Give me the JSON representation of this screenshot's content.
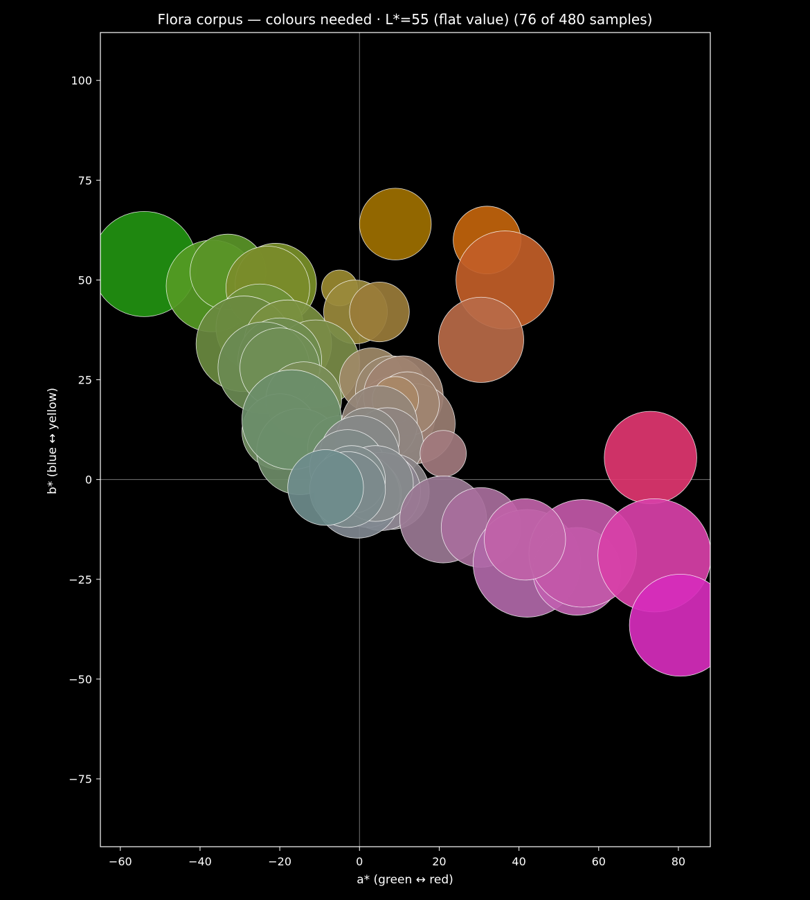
{
  "chart_data": {
    "type": "scatter",
    "title": "Flora corpus — colours needed · L*=55 (flat value)  (76 of 480 samples)",
    "xlabel": "a* (green ↔ red)",
    "ylabel": "b* (blue ↔ yellow)",
    "xlim": [
      -65,
      88
    ],
    "ylim": [
      -92,
      112
    ],
    "x_ticks": [
      -60,
      -40,
      -20,
      0,
      20,
      40,
      60,
      80
    ],
    "y_ticks": [
      -75,
      -50,
      -25,
      0,
      25,
      50,
      75,
      100
    ],
    "x_tick_labels": [
      "−60",
      "−40",
      "−20",
      "0",
      "20",
      "40",
      "60",
      "80"
    ],
    "y_tick_labels": [
      "−75",
      "−50",
      "−25",
      "0",
      "25",
      "50",
      "75",
      "100"
    ],
    "grid": false,
    "zero_lines": true,
    "background": "#000000",
    "foreground": "#ffffff",
    "points": [
      {
        "a": -54,
        "b": 54,
        "r": 13.2,
        "color": "#229211"
      },
      {
        "a": -37,
        "b": 48.5,
        "r": 11.5,
        "color": "#559a24"
      },
      {
        "a": -33,
        "b": 52,
        "r": 9.5,
        "color": "#5a9528"
      },
      {
        "a": -21,
        "b": 49,
        "r": 10.2,
        "color": "#7a9028"
      },
      {
        "a": -23,
        "b": 48,
        "r": 10.5,
        "color": "#7a8c2a"
      },
      {
        "a": -5,
        "b": 48,
        "r": 4.5,
        "color": "#9a8a30"
      },
      {
        "a": -1,
        "b": 42,
        "r": 8.0,
        "color": "#9a8a3c"
      },
      {
        "a": 5,
        "b": 42,
        "r": 7.5,
        "color": "#9a7c3a"
      },
      {
        "a": 9,
        "b": 64,
        "r": 9.0,
        "color": "#9e7000"
      },
      {
        "a": 32,
        "b": 60,
        "r": 8.5,
        "color": "#c2640c"
      },
      {
        "a": 36.5,
        "b": 50,
        "r": 12.3,
        "color": "#c25e28"
      },
      {
        "a": 30.5,
        "b": 35,
        "r": 10.7,
        "color": "#b86a48"
      },
      {
        "a": -25,
        "b": 38,
        "r": 11.0,
        "color": "#6e9038"
      },
      {
        "a": -29,
        "b": 34,
        "r": 12.0,
        "color": "#6a8a40"
      },
      {
        "a": -18,
        "b": 34,
        "r": 11.0,
        "color": "#7a9040"
      },
      {
        "a": -11,
        "b": 29,
        "r": 11.0,
        "color": "#7a8c48"
      },
      {
        "a": -20,
        "b": 30,
        "r": 10.5,
        "color": "#6f8c4e"
      },
      {
        "a": -24,
        "b": 28,
        "r": 11.5,
        "color": "#6a8a52"
      },
      {
        "a": -20,
        "b": 28,
        "r": 10.0,
        "color": "#708e56"
      },
      {
        "a": -14,
        "b": 20,
        "r": 9.5,
        "color": "#7a8e58"
      },
      {
        "a": -20,
        "b": 12,
        "r": 9.5,
        "color": "#6f8c60"
      },
      {
        "a": -15,
        "b": 7,
        "r": 10.8,
        "color": "#6e8c68"
      },
      {
        "a": -5,
        "b": 8,
        "r": 8.0,
        "color": "#7a8a6c"
      },
      {
        "a": -17,
        "b": 15,
        "r": 12.5,
        "color": "#6b8e6a"
      },
      {
        "a": 3,
        "b": 25,
        "r": 8.0,
        "color": "#a08a68"
      },
      {
        "a": 8,
        "b": 22,
        "r": 9.0,
        "color": "#9a8870"
      },
      {
        "a": 9,
        "b": 16,
        "r": 10.0,
        "color": "#9a8070"
      },
      {
        "a": 11,
        "b": 21,
        "r": 10.0,
        "color": "#a08270"
      },
      {
        "a": 14,
        "b": 14,
        "r": 10.0,
        "color": "#9a7e72"
      },
      {
        "a": 12,
        "b": 19,
        "r": 8.0,
        "color": "#a08470"
      },
      {
        "a": 9,
        "b": 20,
        "r": 5.8,
        "color": "#a88866"
      },
      {
        "a": 5,
        "b": 14,
        "r": 9.5,
        "color": "#94867a"
      },
      {
        "a": 7,
        "b": 9,
        "r": 9.0,
        "color": "#8e8480"
      },
      {
        "a": 2,
        "b": 10,
        "r": 8.0,
        "color": "#8a8882"
      },
      {
        "a": 21,
        "b": 6.5,
        "r": 5.8,
        "color": "#a27a7e"
      },
      {
        "a": 0,
        "b": 6,
        "r": 10.0,
        "color": "#868888"
      },
      {
        "a": -3,
        "b": 3,
        "r": 9.5,
        "color": "#808a88"
      },
      {
        "a": 8,
        "b": -3,
        "r": 9.5,
        "color": "#8a8488"
      },
      {
        "a": 5.5,
        "b": -3,
        "r": 9.8,
        "color": "#8c8490"
      },
      {
        "a": 2,
        "b": -3.5,
        "r": 8.5,
        "color": "#888890"
      },
      {
        "a": -0.5,
        "b": -4,
        "r": 10.7,
        "color": "#808890"
      },
      {
        "a": 4,
        "b": -1,
        "r": 9.5,
        "color": "#868a8c"
      },
      {
        "a": -2,
        "b": 0,
        "r": 8.5,
        "color": "#808c8c"
      },
      {
        "a": -3,
        "b": -2.5,
        "r": 9.5,
        "color": "#7c8a8c"
      },
      {
        "a": -8.5,
        "b": -2,
        "r": 9.5,
        "color": "#6e8c8c"
      },
      {
        "a": 21,
        "b": -10,
        "r": 10.9,
        "color": "#9a7894"
      },
      {
        "a": 30.5,
        "b": -12,
        "r": 10.0,
        "color": "#a86e9c"
      },
      {
        "a": 42,
        "b": -21,
        "r": 13.5,
        "color": "#b068a8"
      },
      {
        "a": 54.5,
        "b": -23,
        "r": 11.0,
        "color": "#c060b0"
      },
      {
        "a": 56,
        "b": -18.5,
        "r": 13.5,
        "color": "#c258a8"
      },
      {
        "a": 41.5,
        "b": -15,
        "r": 10.2,
        "color": "#c062a8"
      },
      {
        "a": 73,
        "b": 5.5,
        "r": 11.6,
        "color": "#e03670"
      },
      {
        "a": 74,
        "b": -19,
        "r": 14.2,
        "color": "#d840a8"
      },
      {
        "a": 80.5,
        "b": -36.5,
        "r": 12.8,
        "color": "#d62cbc"
      }
    ]
  }
}
